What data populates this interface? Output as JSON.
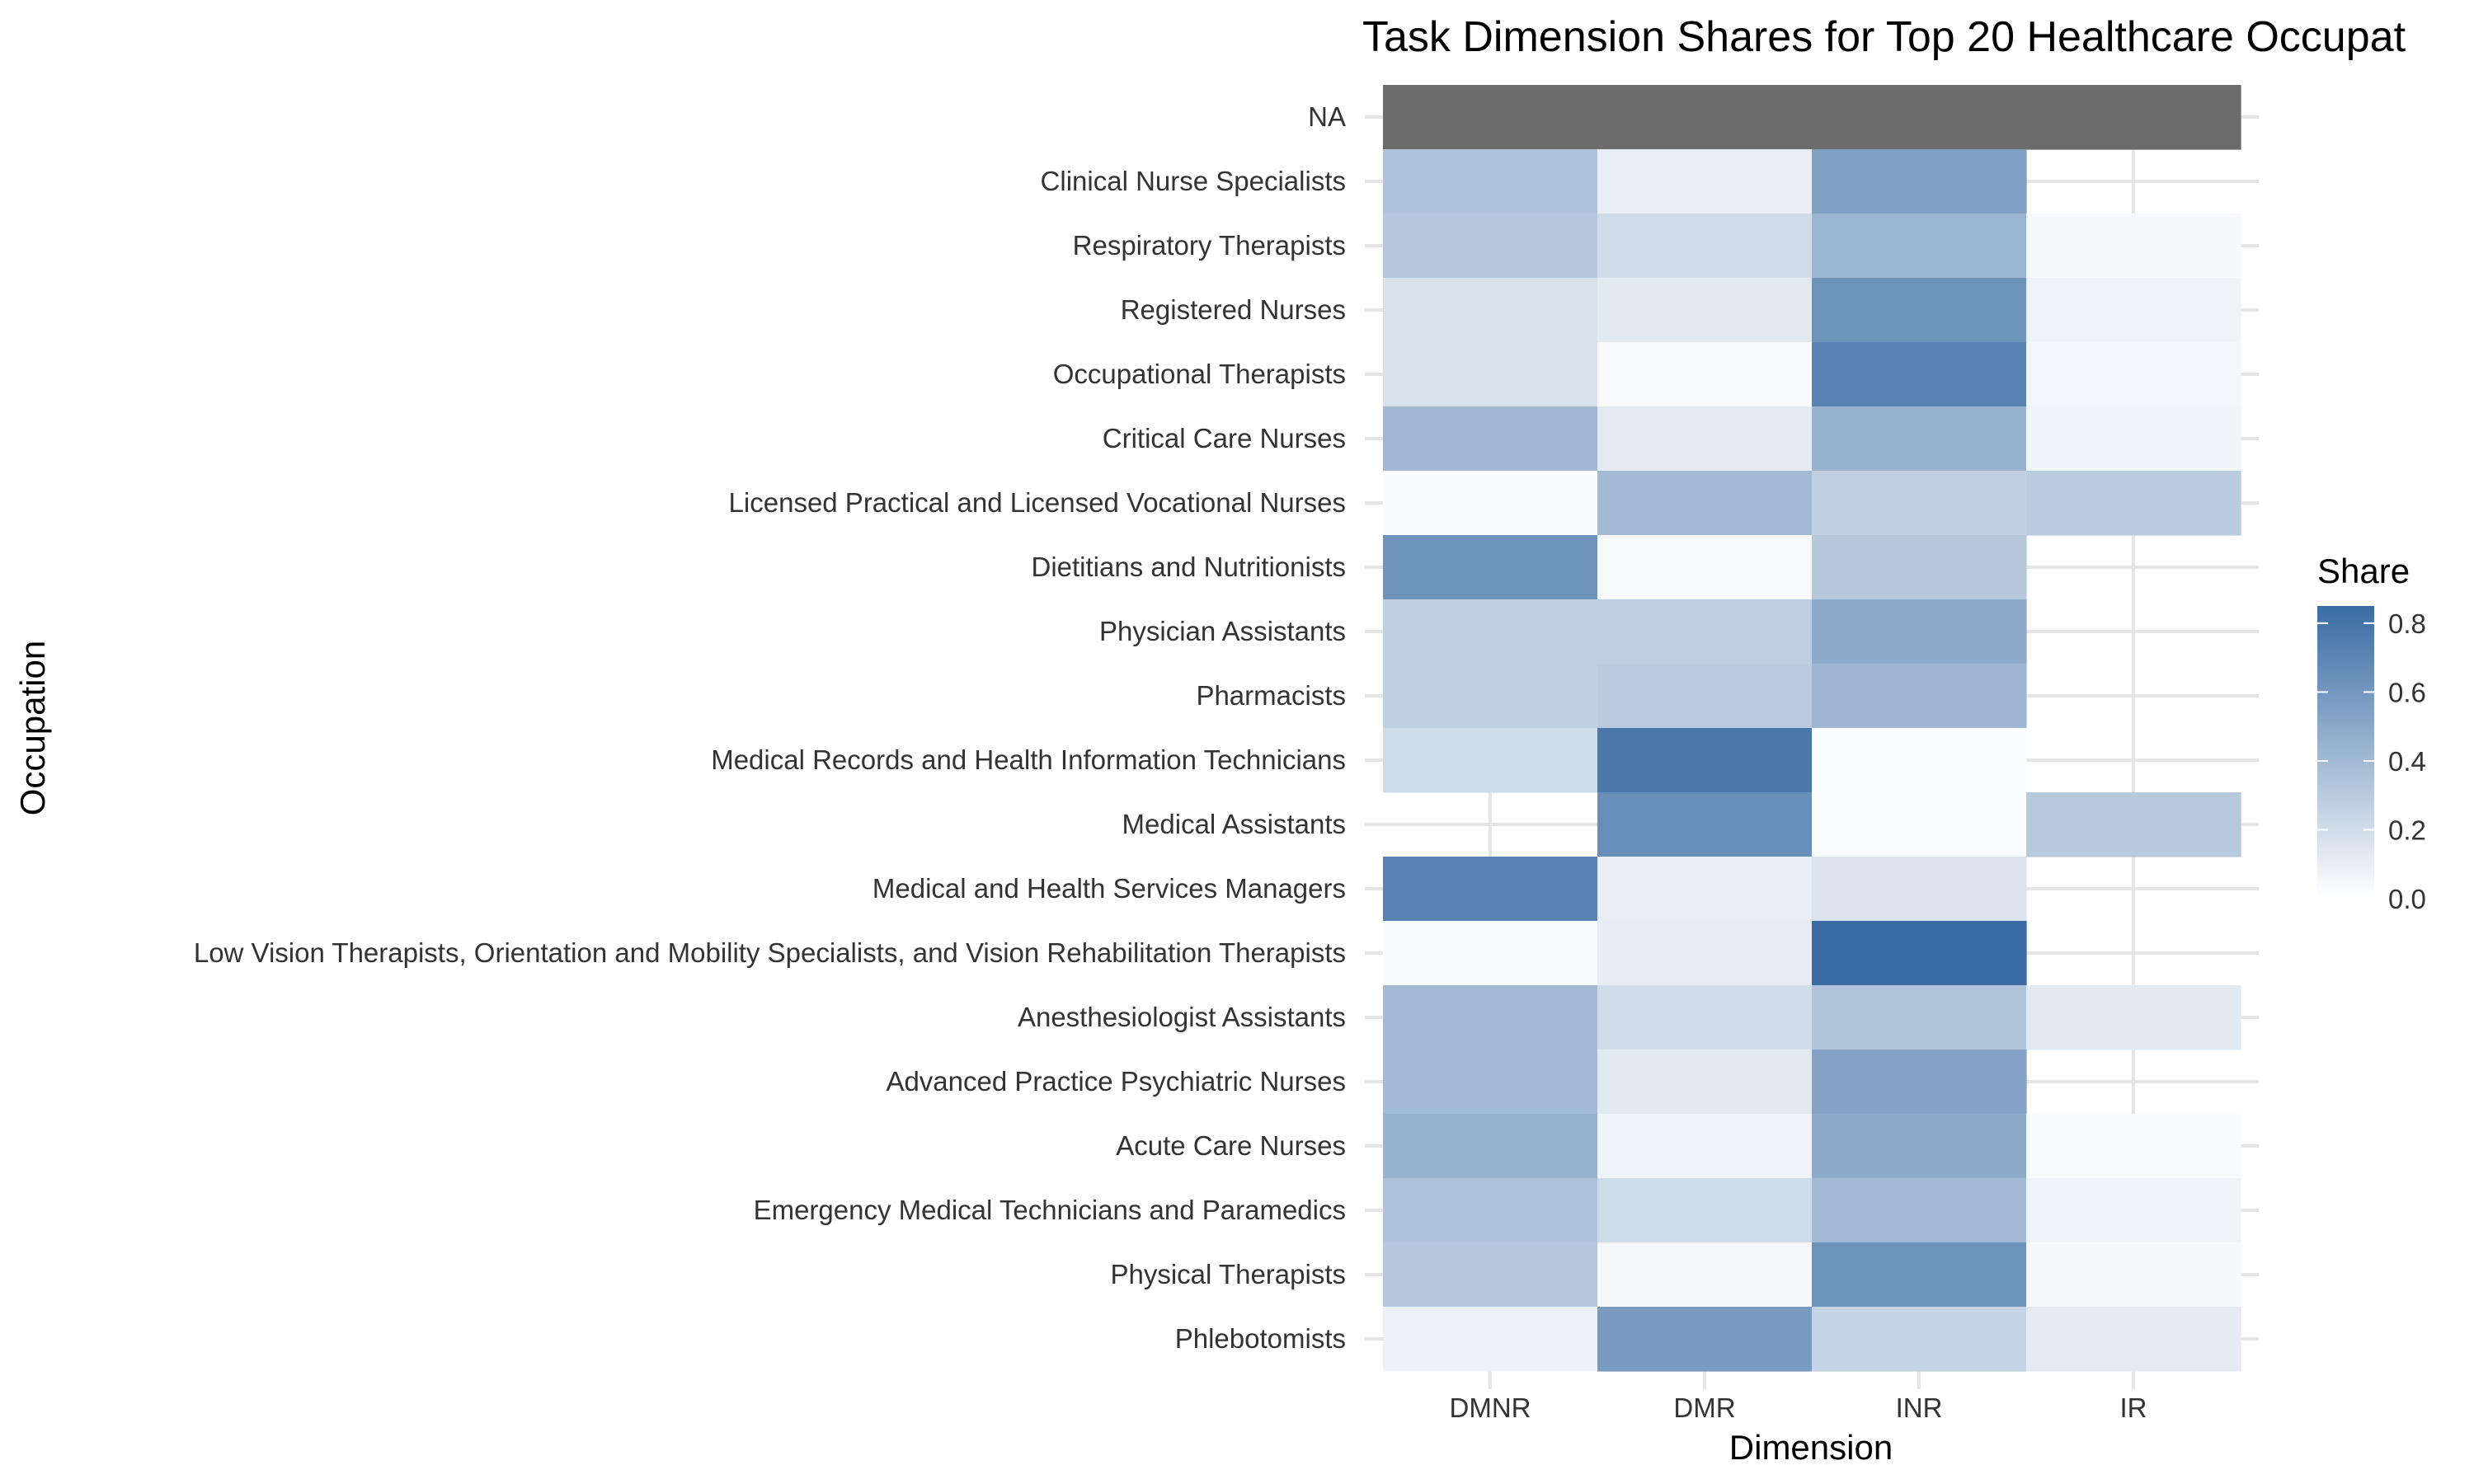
{
  "chart_data": {
    "type": "heatmap",
    "title": "Task Dimension Shares for Top 20 Healthcare Occupat",
    "xlabel": "Dimension",
    "ylabel": "Occupation",
    "x_categories": [
      "DMNR",
      "DMR",
      "INR",
      "IR"
    ],
    "y_categories": [
      "NA",
      "Clinical Nurse Specialists",
      "Respiratory Therapists",
      "Registered Nurses",
      "Occupational Therapists",
      "Critical Care Nurses",
      "Licensed Practical and Licensed Vocational Nurses",
      "Dietitians and Nutritionists",
      "Physician Assistants",
      "Pharmacists",
      "Medical Records and Health Information Technicians",
      "Medical Assistants",
      "Medical and Health Services Managers",
      "Low Vision Therapists, Orientation and Mobility Specialists, and Vision Rehabilitation Therapists",
      "Anesthesiologist Assistants",
      "Advanced Practice Psychiatric Nurses",
      "Acute Care Nurses",
      "Emergency Medical Technicians and Paramedics",
      "Physical Therapists",
      "Phlebotomists"
    ],
    "values": [
      [
        null,
        null,
        null,
        null
      ],
      [
        0.35,
        0.1,
        0.55,
        null
      ],
      [
        0.33,
        0.2,
        0.43,
        0.04
      ],
      [
        0.17,
        0.13,
        0.62,
        0.07
      ],
      [
        0.17,
        0.03,
        0.72,
        0.05
      ],
      [
        0.41,
        0.12,
        0.44,
        0.06
      ],
      [
        0.03,
        0.4,
        0.27,
        0.3
      ],
      [
        0.62,
        0.03,
        0.32,
        null
      ],
      [
        0.28,
        0.28,
        0.49,
        null
      ],
      [
        0.28,
        0.3,
        0.42,
        null
      ],
      [
        0.21,
        0.78,
        0.02,
        null
      ],
      [
        null,
        0.65,
        0.02,
        0.31
      ],
      [
        0.72,
        0.1,
        0.16,
        null
      ],
      [
        0.03,
        0.11,
        0.85,
        null
      ],
      [
        0.4,
        0.2,
        0.34,
        0.13
      ],
      [
        0.4,
        0.13,
        0.53,
        null
      ],
      [
        0.45,
        0.07,
        0.49,
        0.03
      ],
      [
        0.35,
        0.21,
        0.4,
        0.07
      ],
      [
        0.33,
        0.04,
        0.62,
        0.04
      ],
      [
        0.08,
        0.58,
        0.25,
        0.12
      ]
    ],
    "legend": {
      "title": "Share",
      "ticks": [
        "0.8",
        "0.6",
        "0.4",
        "0.2",
        "0.0"
      ],
      "tick_values": [
        0.8,
        0.6,
        0.4,
        0.2,
        0.0
      ],
      "range": [
        0,
        0.85
      ],
      "placement": "right"
    },
    "colors": {
      "low": "#ffffff",
      "high": "#3a6ca3",
      "na": "#6b6b6b",
      "grid": "#e5e5e5"
    },
    "grid": true
  }
}
